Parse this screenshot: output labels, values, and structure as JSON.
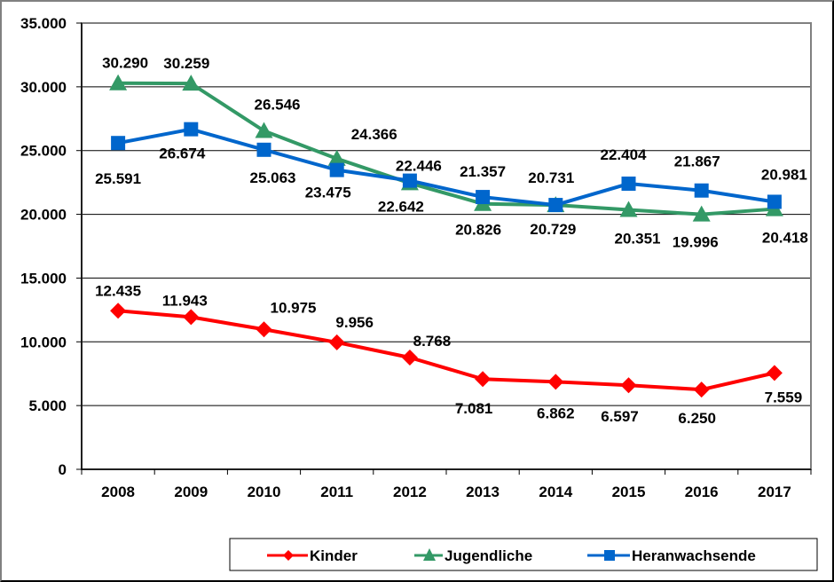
{
  "chart_data": {
    "type": "line",
    "title": "",
    "xlabel": "",
    "ylabel": "",
    "categories": [
      "2008",
      "2009",
      "2010",
      "2011",
      "2012",
      "2013",
      "2014",
      "2015",
      "2016",
      "2017"
    ],
    "ylim": [
      0,
      35000
    ],
    "yticks": [
      0,
      5000,
      10000,
      15000,
      20000,
      25000,
      30000,
      35000
    ],
    "ytick_labels": [
      "0",
      "5.000",
      "10.000",
      "15.000",
      "20.000",
      "25.000",
      "30.000",
      "35.000"
    ],
    "grid": true,
    "legend_position": "bottom",
    "series": [
      {
        "name": "Kinder",
        "color": "#ff0000",
        "marker": "diamond",
        "values": [
          12435,
          11943,
          10975,
          9956,
          8768,
          7081,
          6862,
          6597,
          6250,
          7559
        ],
        "labels": [
          "12.435",
          "11.943",
          "10.975",
          "9.956",
          "8.768",
          "7.081",
          "6.862",
          "6.597",
          "6.250",
          "7.559"
        ]
      },
      {
        "name": "Jugendliche",
        "color": "#339966",
        "marker": "triangle",
        "values": [
          30290,
          30259,
          26546,
          24366,
          22446,
          20826,
          20729,
          20351,
          19996,
          20418
        ],
        "labels": [
          "30.290",
          "30.259",
          "26.546",
          "24.366",
          "22.446",
          "20.826",
          "20.729",
          "20.351",
          "19.996",
          "20.418"
        ]
      },
      {
        "name": "Heranwachsende",
        "color": "#0066cc",
        "marker": "square",
        "values": [
          25591,
          26674,
          25063,
          23475,
          22642,
          21357,
          20731,
          22404,
          21867,
          20981
        ],
        "labels": [
          "25.591",
          "26.674",
          "25.063",
          "23.475",
          "22.642",
          "21.357",
          "20.731",
          "22.404",
          "21.867",
          "20.981"
        ]
      }
    ]
  }
}
